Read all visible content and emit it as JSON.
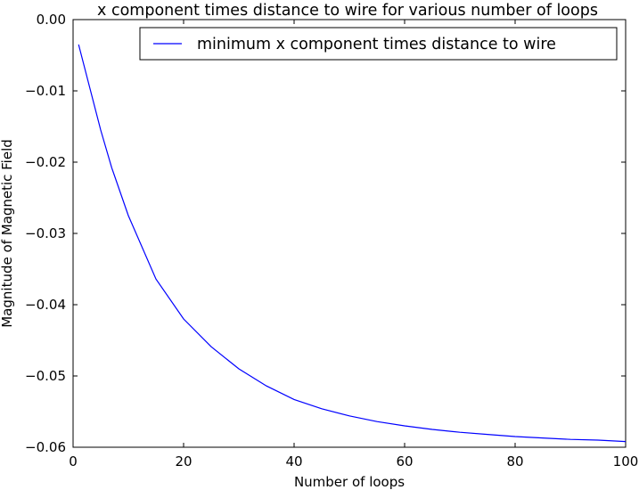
{
  "chart_data": {
    "type": "line",
    "title": "x component times distance to wire for various number of loops",
    "xlabel": "Number of loops",
    "ylabel": "Magnitude of Magnetic Field",
    "xlim": [
      0,
      100
    ],
    "ylim": [
      -0.06,
      0.0
    ],
    "x_ticks": [
      0,
      20,
      40,
      60,
      80,
      100
    ],
    "x_tick_labels": [
      "0",
      "20",
      "40",
      "60",
      "80",
      "100"
    ],
    "y_ticks": [
      0.0,
      -0.01,
      -0.02,
      -0.03,
      -0.04,
      -0.05,
      -0.06
    ],
    "y_tick_labels": [
      "0.00",
      "−0.01",
      "−0.02",
      "−0.03",
      "−0.04",
      "−0.05",
      "−0.06"
    ],
    "grid": false,
    "legend_position": "top-right",
    "series": [
      {
        "name": "minimum x component times distance to wire",
        "color": "#0000ff",
        "x": [
          1,
          3,
          5,
          7,
          10,
          15,
          20,
          25,
          30,
          35,
          40,
          45,
          50,
          55,
          60,
          65,
          70,
          75,
          80,
          85,
          90,
          95,
          100
        ],
        "y": [
          -0.0035,
          -0.0095,
          -0.0155,
          -0.0208,
          -0.0275,
          -0.0364,
          -0.042,
          -0.0459,
          -0.049,
          -0.0514,
          -0.0533,
          -0.0546,
          -0.0556,
          -0.0564,
          -0.057,
          -0.0575,
          -0.0579,
          -0.0582,
          -0.0585,
          -0.0587,
          -0.0589,
          -0.059,
          -0.0592
        ]
      }
    ]
  }
}
